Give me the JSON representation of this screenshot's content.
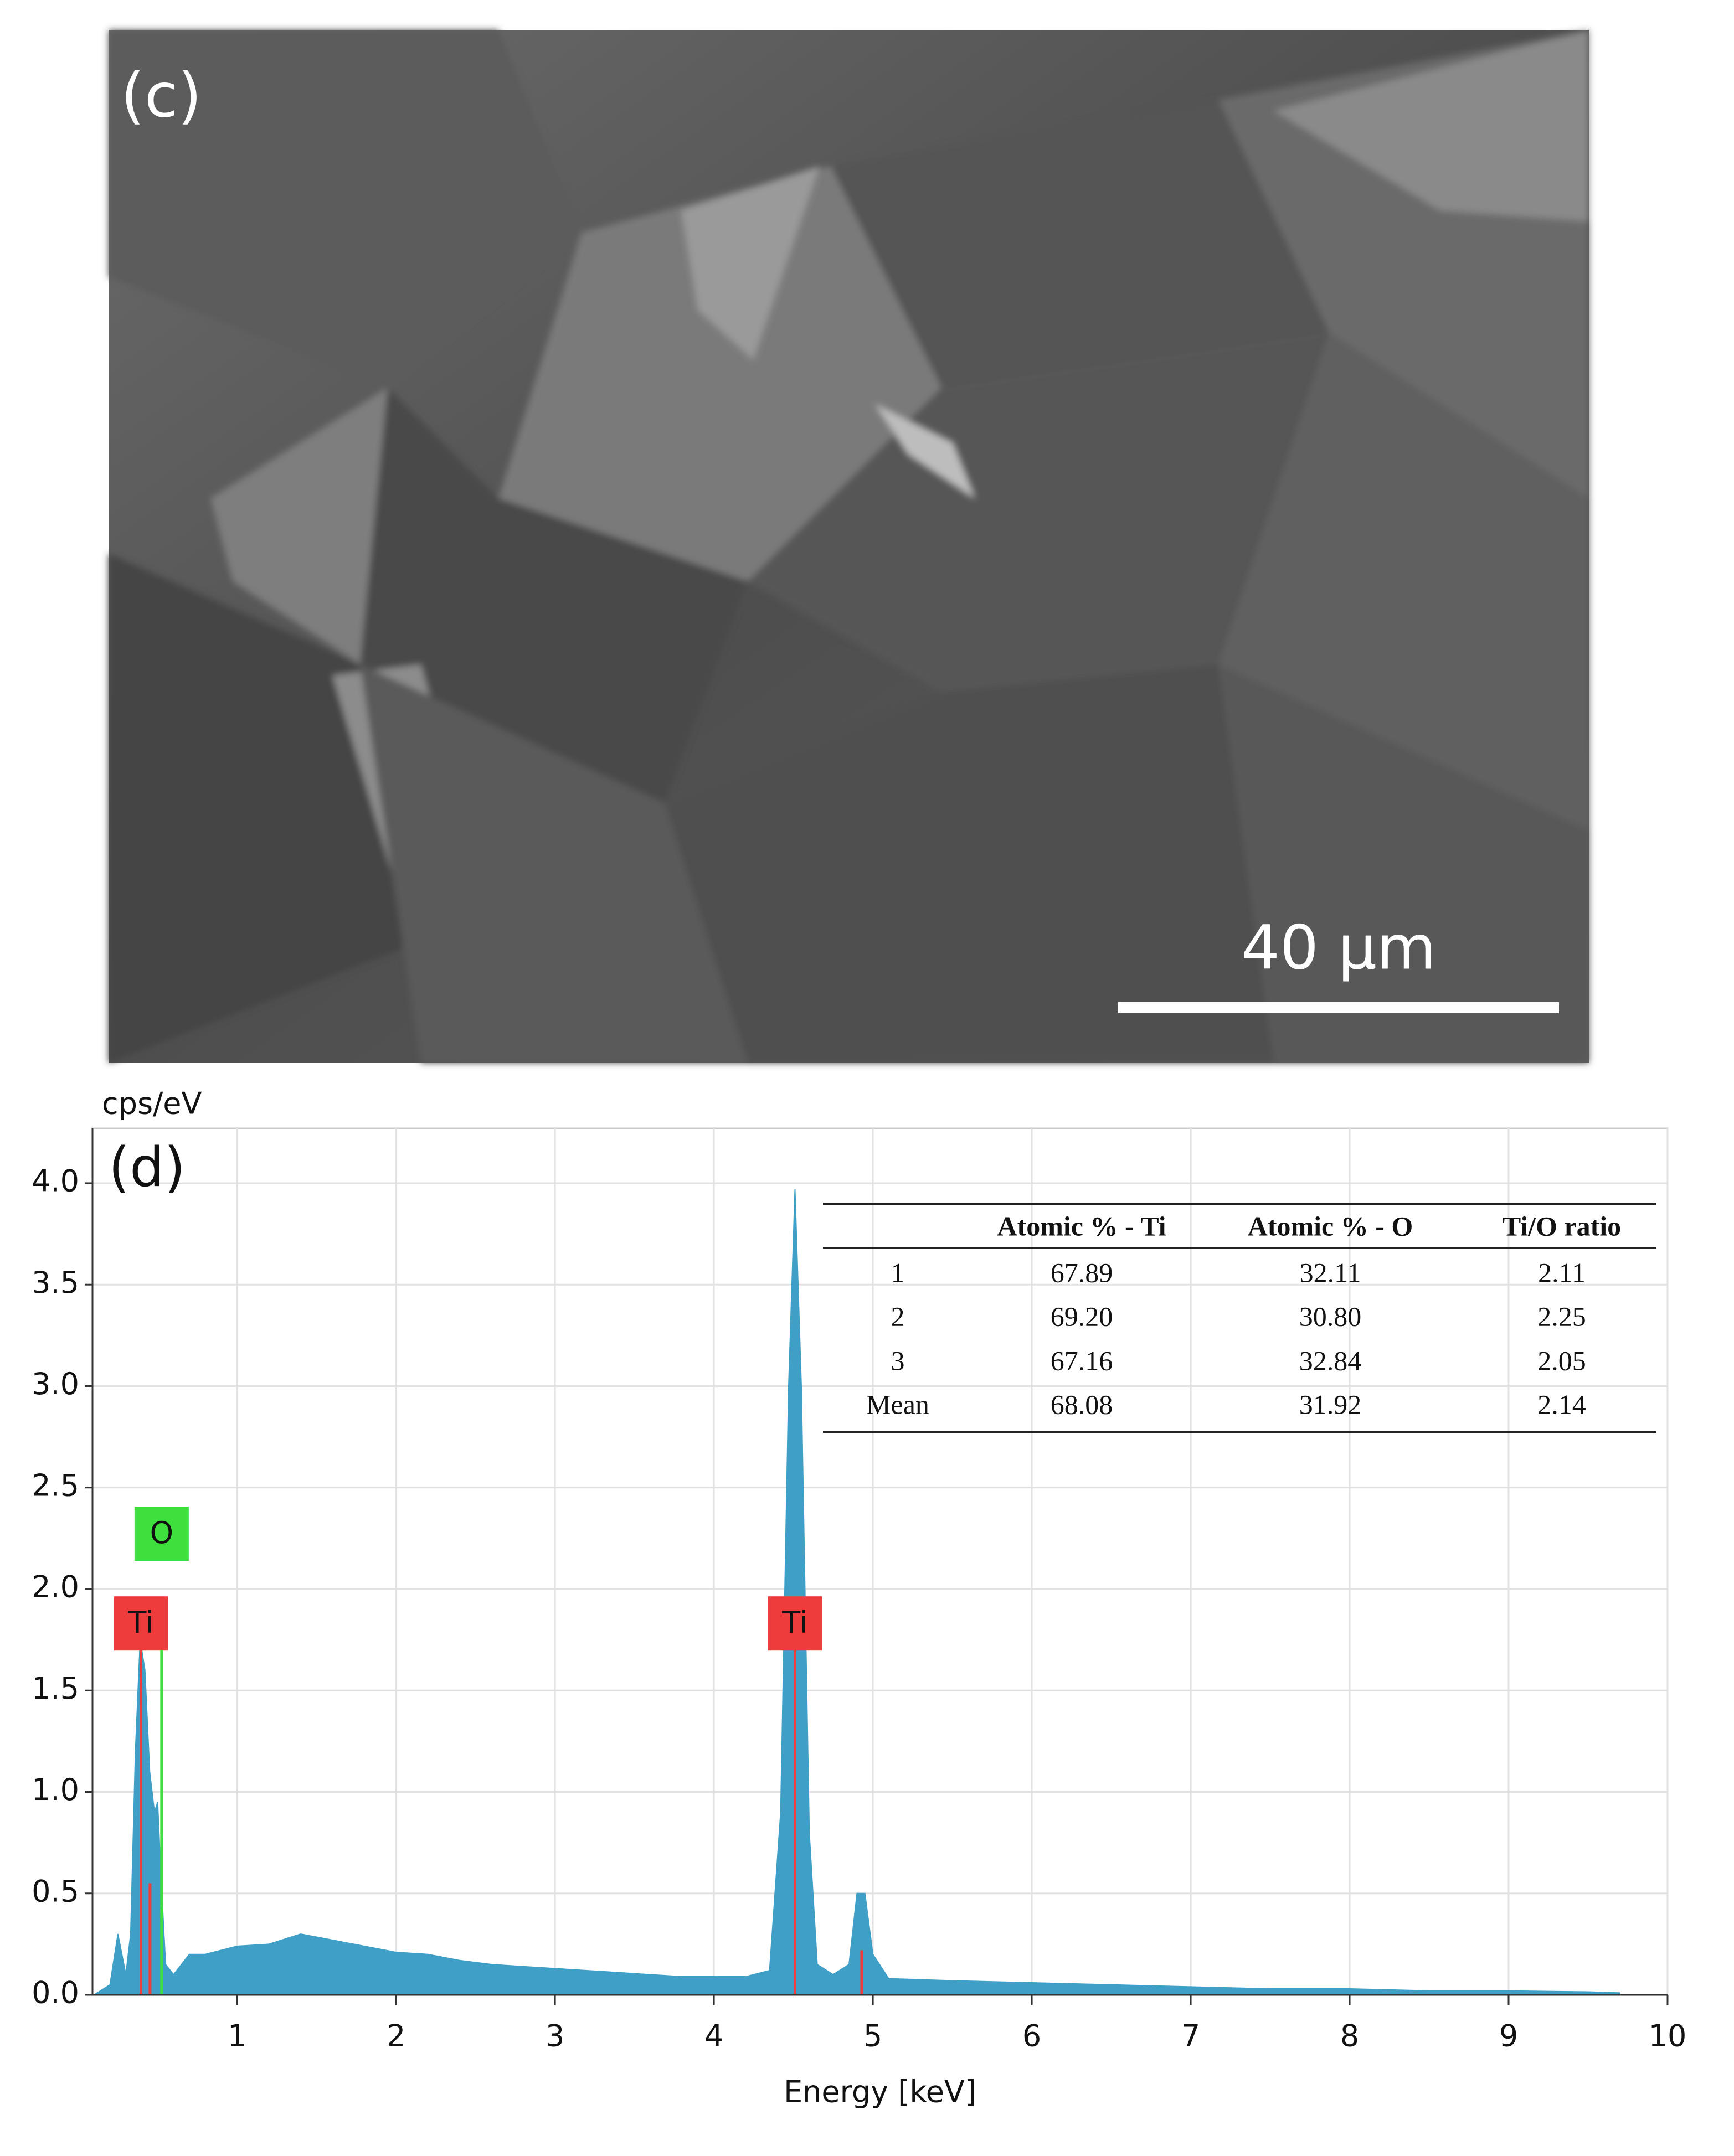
{
  "image": {
    "label": "(c)",
    "scale_bar": "40 μm"
  },
  "chart_data": {
    "type": "area",
    "label": "(d)",
    "y_label": "cps/eV",
    "x_label": "Energy [keV]",
    "color": "#3f9fc6",
    "grid": true,
    "xlim": [
      0.09,
      10
    ],
    "ylim": [
      0,
      4.27
    ],
    "xticks": [
      1,
      2,
      3,
      4,
      5,
      6,
      7,
      8,
      9,
      10
    ],
    "yticks": [
      {
        "value": 0,
        "label": "0.0"
      },
      0.5,
      {
        "value": 1,
        "label": "1.0"
      },
      1.5,
      {
        "value": 2,
        "label": "2.0"
      },
      2.5,
      {
        "value": 3,
        "label": "3.0"
      },
      3.5,
      {
        "value": 4,
        "label": "4.0"
      }
    ],
    "x": [
      0.1,
      0.2,
      0.25,
      0.3,
      0.33,
      0.36,
      0.39,
      0.42,
      0.45,
      0.48,
      0.5,
      0.52,
      0.55,
      0.6,
      0.7,
      0.8,
      0.9,
      1.0,
      1.2,
      1.4,
      1.6,
      1.8,
      2.0,
      2.2,
      2.4,
      2.6,
      2.8,
      3.0,
      3.2,
      3.4,
      3.6,
      3.8,
      4.0,
      4.2,
      4.35,
      4.42,
      4.47,
      4.51,
      4.55,
      4.6,
      4.65,
      4.75,
      4.85,
      4.9,
      4.95,
      5.0,
      5.1,
      5.5,
      6.0,
      6.5,
      7.0,
      7.5,
      8.0,
      8.5,
      9.0,
      9.5,
      9.7
    ],
    "values": [
      0.0,
      0.05,
      0.3,
      0.1,
      0.3,
      1.2,
      1.75,
      1.6,
      1.1,
      0.9,
      0.95,
      0.6,
      0.15,
      0.1,
      0.2,
      0.2,
      0.22,
      0.24,
      0.25,
      0.3,
      0.27,
      0.24,
      0.21,
      0.2,
      0.17,
      0.15,
      0.14,
      0.13,
      0.12,
      0.11,
      0.1,
      0.09,
      0.09,
      0.09,
      0.12,
      0.9,
      3.0,
      3.97,
      3.0,
      0.8,
      0.15,
      0.1,
      0.15,
      0.5,
      0.5,
      0.2,
      0.08,
      0.07,
      0.06,
      0.05,
      0.04,
      0.03,
      0.03,
      0.02,
      0.02,
      0.015,
      0.01
    ],
    "markers": [
      {
        "label": "Ti",
        "color": "#ee3b3b",
        "x": [
          0.395,
          0.452
        ],
        "y": [
          1.75,
          0.55
        ]
      },
      {
        "label": "O",
        "color": "#3ee03e",
        "x": [
          0.525
        ],
        "y": [
          1.7
        ]
      },
      {
        "label": "Ti",
        "color": "#ee3b3b",
        "x": [
          4.51,
          4.93
        ],
        "y": [
          1.75,
          0.22
        ]
      }
    ]
  },
  "table": {
    "columns": [
      "Atomic % - Ti",
      "Atomic % - O",
      "Ti/O ratio"
    ],
    "rows": [
      [
        "1",
        "67.89",
        "32.11",
        "2.11"
      ],
      [
        "2",
        "69.20",
        "30.80",
        "2.25"
      ],
      [
        "3",
        "67.16",
        "32.84",
        "2.05"
      ],
      [
        "Mean",
        "68.08",
        "31.92",
        "2.14"
      ]
    ]
  }
}
